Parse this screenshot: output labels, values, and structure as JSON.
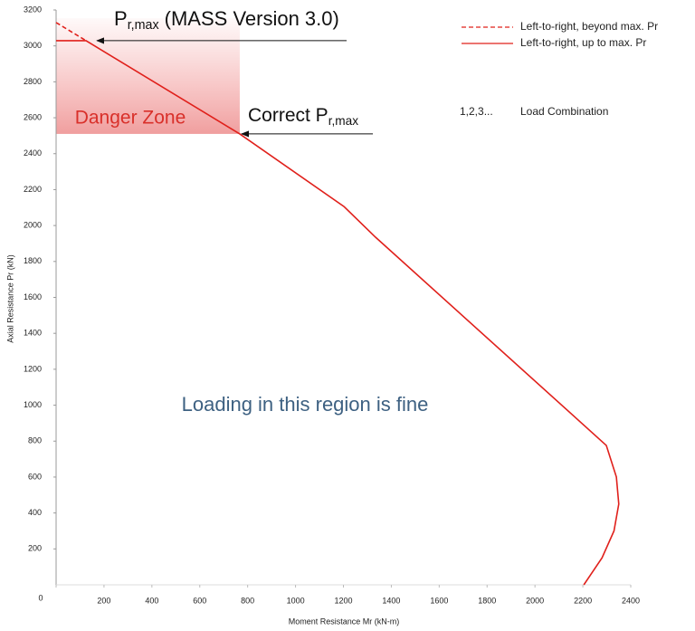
{
  "chart_data": {
    "type": "line",
    "x_label": "Moment Resistance Mr (kN-m)",
    "y_label": "Axial Resistance Pr (kN)",
    "xlim": [
      0,
      2400
    ],
    "xticks": [
      0,
      200,
      400,
      600,
      800,
      1000,
      1200,
      1400,
      1600,
      1800,
      2000,
      2200,
      2400
    ],
    "ylim": [
      0,
      3200
    ],
    "yticks": [
      200,
      400,
      600,
      800,
      1000,
      1200,
      1400,
      1600,
      1800,
      2000,
      2200,
      2400,
      2600,
      2800,
      3000,
      3200
    ],
    "series": [
      {
        "name": "Left-to-right, beyond max. Pr",
        "color": "#e0201b",
        "dashed": true,
        "x": [
          0,
          125
        ],
        "values": [
          3130,
          3029
        ]
      },
      {
        "name": "Left-to-right, up to max. Pr",
        "color": "#e0201b",
        "dashed": false,
        "x": [
          0,
          125,
          767,
          1202,
          1334,
          2298,
          2340,
          2350,
          2330,
          2280,
          2204
        ],
        "values": [
          3029,
          3029,
          2510,
          2106,
          1935,
          776,
          600,
          450,
          300,
          150,
          0
        ]
      }
    ],
    "load_combination": {
      "symbol": "1,2,3...",
      "label": "Load Combination"
    },
    "annotations": {
      "mass_max": {
        "main": "P",
        "sub": "r,max",
        "rest": "(MASS Version 3.0)"
      },
      "correct_max": {
        "main": "Correct P",
        "sub": "r,max"
      },
      "danger": "Danger Zone",
      "fine": "Loading in this region is fine"
    }
  }
}
